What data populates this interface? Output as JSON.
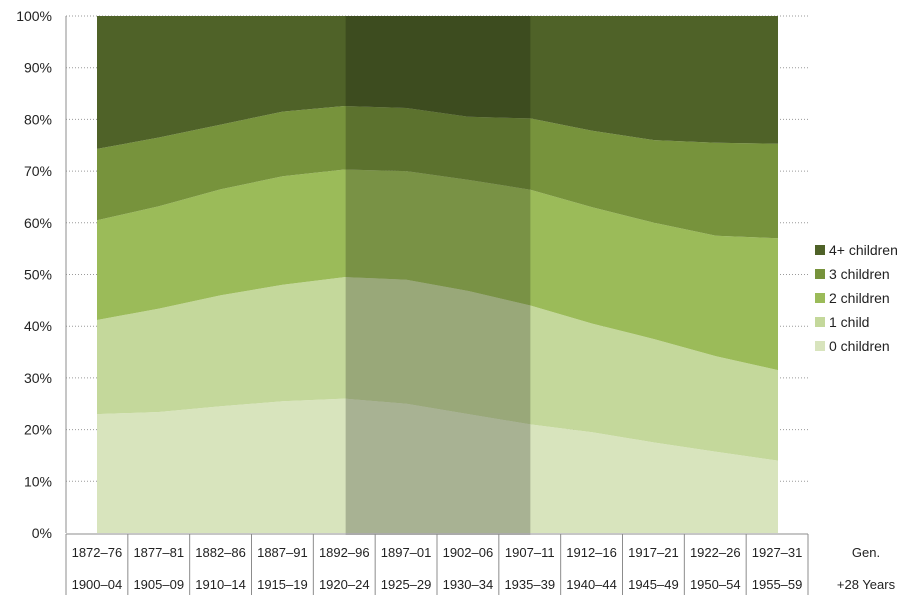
{
  "chart_data": {
    "type": "area",
    "stacked": true,
    "percent": true,
    "row_labels": [
      "Gen.",
      "+28 Years"
    ],
    "categories_gen": [
      "1872–76",
      "1877–81",
      "1882–86",
      "1887–91",
      "1892–96",
      "1897–01",
      "1902–06",
      "1907–11",
      "1912–16",
      "1917–21",
      "1922–26",
      "1927–31"
    ],
    "categories_years": [
      "1900–04",
      "1905–09",
      "1910–14",
      "1915–19",
      "1920–24",
      "1925–29",
      "1930–34",
      "1935–39",
      "1940–44",
      "1945–49",
      "1950–54",
      "1955–59"
    ],
    "yticks": [
      "0%",
      "10%",
      "20%",
      "30%",
      "40%",
      "50%",
      "60%",
      "70%",
      "80%",
      "90%",
      "100%"
    ],
    "ylim": [
      0,
      100
    ],
    "grid": true,
    "legend_position": "right",
    "highlight_range": [
      "1892–96",
      "1907–11"
    ],
    "series": [
      {
        "name": "0 children",
        "color": "#d8e4bd",
        "values": [
          23,
          23.4,
          24.5,
          25.5,
          26,
          25,
          23,
          21,
          19.5,
          17.5,
          15.7,
          14
        ]
      },
      {
        "name": "1 child",
        "color": "#c4d89b",
        "values": [
          18.2,
          20,
          21.5,
          22.5,
          23.5,
          24,
          23.8,
          23,
          21,
          20,
          18.5,
          17.5
        ]
      },
      {
        "name": "2 children",
        "color": "#9bbb59",
        "values": [
          19.3,
          19.8,
          20.5,
          21,
          20.8,
          21,
          21.5,
          22.4,
          22.5,
          22.5,
          23.3,
          25.5
        ]
      },
      {
        "name": "3 children",
        "color": "#77933c",
        "values": [
          13.8,
          13.3,
          12.5,
          12.5,
          12.3,
          12.2,
          12.2,
          13.8,
          14.8,
          16,
          18,
          18.3
        ]
      },
      {
        "name": "4+ children",
        "color": "#4f6228",
        "values": [
          25.7,
          23.5,
          21,
          18.5,
          17.4,
          17.8,
          19.5,
          19.8,
          22.2,
          24,
          24.5,
          24.7
        ]
      }
    ]
  }
}
